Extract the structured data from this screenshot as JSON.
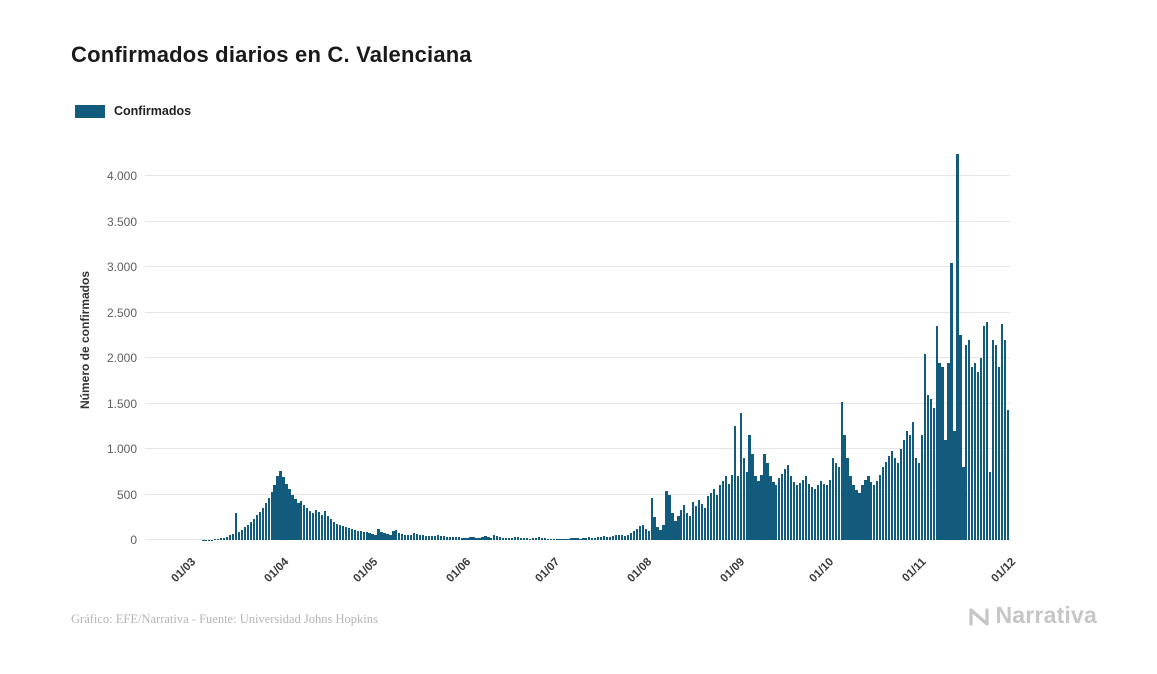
{
  "title": "Confirmados diarios en C. Valenciana",
  "legend": {
    "label": "Confirmados"
  },
  "footer": {
    "credit": "Gráfico: EFE/Narrativa - Fuente: Universidad Johns Hopkins",
    "brand": "Narrativa"
  },
  "colors": {
    "bar": "#135b7c",
    "grid": "#e6e6e6",
    "title_text": "#1a1a1a",
    "y_tick_text": "#5f5f5f",
    "x_tick_text": "#3a3a3a",
    "credit_text": "#b5b5b5",
    "brand_text": "#c6c6c6",
    "background": "#ffffff"
  },
  "chart_data": {
    "type": "bar",
    "title": "Confirmados diarios en C. Valenciana",
    "xlabel": "",
    "ylabel": "Número de confirmados",
    "grid": "horizontal",
    "legend_position": "top-left",
    "ylim": [
      0,
      4400
    ],
    "y_ticks": [
      0,
      500,
      1000,
      1500,
      2000,
      2500,
      3000,
      3500,
      4000
    ],
    "y_tick_labels": [
      "0",
      "500",
      "1.000",
      "1.500",
      "2.000",
      "2.500",
      "3.000",
      "3.500",
      "4.000"
    ],
    "x_tick_labels": [
      "01/03",
      "01/04",
      "01/05",
      "01/06",
      "01/07",
      "01/08",
      "01/09",
      "01/10",
      "01/11",
      "01/12"
    ],
    "x_tick_day_offsets": [
      0,
      31,
      61,
      92,
      122,
      153,
      184,
      214,
      245,
      275
    ],
    "series": [
      {
        "name": "Confirmados",
        "start_date": "01/03",
        "end_date": "01/12",
        "frequency": "daily",
        "values": [
          0,
          0,
          0,
          0,
          1,
          2,
          3,
          5,
          8,
          12,
          18,
          25,
          35,
          50,
          70,
          295,
          90,
          115,
          140,
          170,
          200,
          235,
          270,
          310,
          355,
          405,
          460,
          530,
          610,
          700,
          760,
          690,
          620,
          560,
          500,
          450,
          410,
          430,
          380,
          350,
          320,
          300,
          330,
          310,
          280,
          320,
          260,
          230,
          200,
          180,
          160,
          150,
          140,
          130,
          120,
          110,
          100,
          95,
          90,
          85,
          80,
          70,
          60,
          120,
          90,
          75,
          65,
          60,
          95,
          110,
          80,
          65,
          55,
          50,
          60,
          75,
          65,
          55,
          50,
          45,
          42,
          40,
          45,
          50,
          45,
          40,
          38,
          35,
          32,
          30,
          28,
          25,
          22,
          20,
          28,
          35,
          25,
          22,
          30,
          40,
          30,
          25,
          60,
          45,
          32,
          26,
          22,
          20,
          24,
          28,
          32,
          26,
          22,
          18,
          16,
          20,
          24,
          28,
          22,
          18,
          15,
          12,
          10,
          12,
          15,
          12,
          10,
          14,
          18,
          22,
          18,
          15,
          20,
          25,
          30,
          26,
          22,
          28,
          35,
          42,
          36,
          32,
          40,
          50,
          60,
          55,
          48,
          60,
          80,
          100,
          120,
          150,
          170,
          120,
          100,
          460,
          250,
          140,
          110,
          170,
          540,
          490,
          300,
          210,
          260,
          330,
          390,
          300,
          260,
          420,
          370,
          440,
          400,
          350,
          480,
          520,
          560,
          500,
          600,
          650,
          700,
          620,
          720,
          1250,
          700,
          1400,
          900,
          750,
          1150,
          950,
          700,
          650,
          720,
          950,
          850,
          700,
          640,
          600,
          680,
          730,
          780,
          820,
          700,
          640,
          600,
          630,
          660,
          700,
          620,
          580,
          560,
          600,
          650,
          620,
          600,
          660,
          900,
          850,
          800,
          1520,
          1150,
          900,
          700,
          600,
          550,
          520,
          600,
          660,
          700,
          640,
          600,
          650,
          720,
          800,
          860,
          920,
          980,
          900,
          850,
          1000,
          1100,
          1200,
          1150,
          1300,
          900,
          850,
          1150,
          2050,
          1600,
          1550,
          1450,
          2350,
          1950,
          1900,
          1100,
          1950,
          3050,
          1200,
          4250,
          2250,
          800,
          2150,
          2200,
          1900,
          1950,
          1850,
          2000,
          2350,
          2400,
          750,
          2200,
          2150,
          1900,
          2380,
          2200,
          1430
        ]
      }
    ]
  }
}
